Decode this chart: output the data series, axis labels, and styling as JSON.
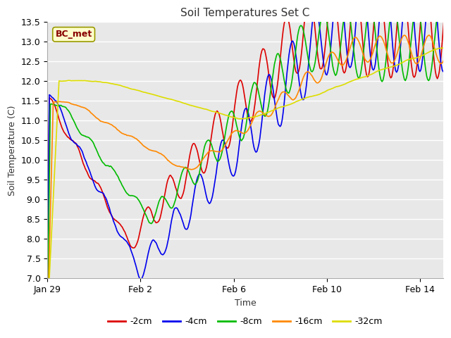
{
  "title": "Soil Temperatures Set C",
  "xlabel": "Time",
  "ylabel": "Soil Temperature (C)",
  "ylim": [
    7.0,
    13.5
  ],
  "yticks": [
    7.0,
    7.5,
    8.0,
    8.5,
    9.0,
    9.5,
    10.0,
    10.5,
    11.0,
    11.5,
    12.0,
    12.5,
    13.0,
    13.5
  ],
  "plot_bg": "#e8e8e8",
  "fig_bg": "#ffffff",
  "legend_label": "BC_met",
  "legend_box_facecolor": "#ffffcc",
  "legend_box_edgecolor": "#999900",
  "legend_text_color": "#880000",
  "series": [
    {
      "label": "-2cm",
      "color": "#dd0000",
      "lw": 1.2
    },
    {
      "label": "-4cm",
      "color": "#0000ee",
      "lw": 1.2
    },
    {
      "label": "-8cm",
      "color": "#00bb00",
      "lw": 1.2
    },
    {
      "label": "-16cm",
      "color": "#ff8800",
      "lw": 1.2
    },
    {
      "label": "-32cm",
      "color": "#dddd00",
      "lw": 1.2
    }
  ],
  "xtick_labels": [
    "Jan 29",
    "Feb 2",
    "Feb 6",
    "Feb 10",
    "Feb 14"
  ],
  "xtick_days": [
    0,
    4,
    8,
    12,
    16
  ],
  "figsize": [
    6.4,
    4.8
  ],
  "dpi": 100
}
